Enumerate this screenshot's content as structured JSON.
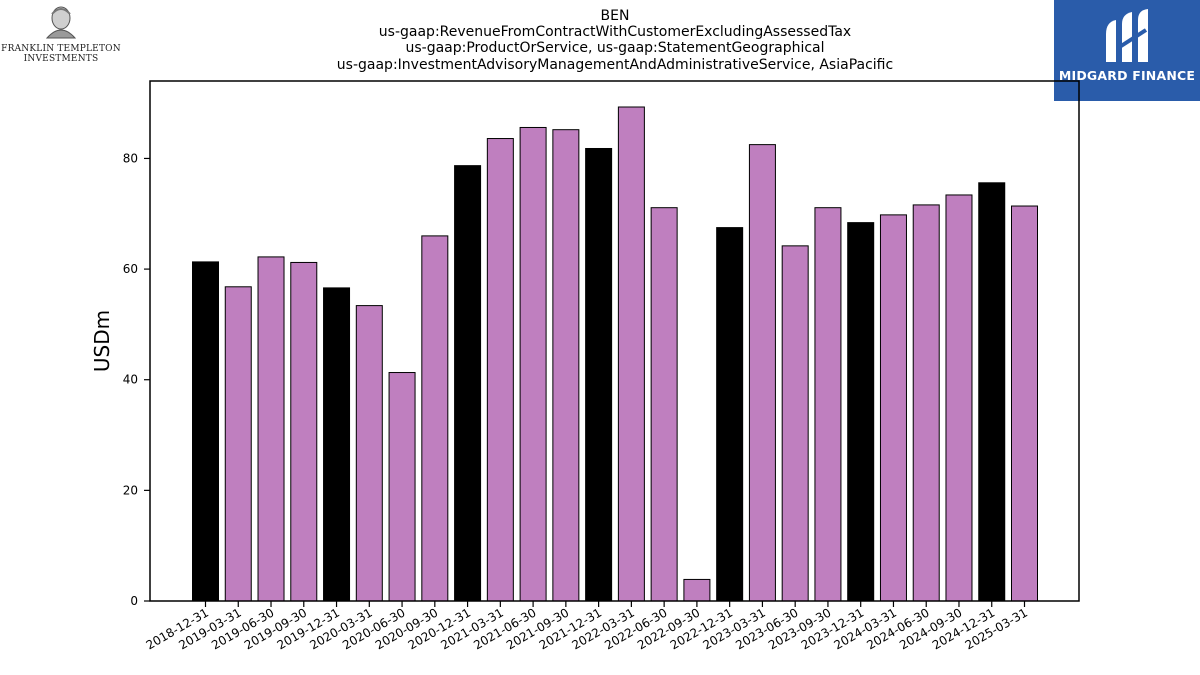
{
  "header": {
    "title_lines": [
      "BEN",
      "us-gaap:RevenueFromContractWithCustomerExcludingAssessedTax",
      "us-gaap:ProductOrService, us-gaap:StatementGeographical",
      "us-gaap:InvestmentAdvisoryManagementAndAdministrativeService, AsiaPacific"
    ]
  },
  "logos": {
    "left": {
      "line1": "FRANKLIN TEMPLETON",
      "line2": "INVESTMENTS"
    },
    "right": {
      "text": "MIDGARD FINANCE",
      "color": "#2a5caa"
    }
  },
  "colors": {
    "quarter_bar": "#bf7fbf",
    "year_end_bar": "#000000",
    "bar_edge": "#000000"
  },
  "chart_data": {
    "type": "bar",
    "title": "BEN\nus-gaap:RevenueFromContractWithCustomerExcludingAssessedTax\nus-gaap:ProductOrService, us-gaap:StatementGeographical\nus-gaap:InvestmentAdvisoryManagementAndAdministrativeService, AsiaPacific",
    "xlabel": "",
    "ylabel": "USDm",
    "ylim": [
      0,
      94
    ],
    "yticks": [
      0,
      20,
      40,
      60,
      80
    ],
    "grid": false,
    "categories": [
      "2018-12-31",
      "2019-03-31",
      "2019-06-30",
      "2019-09-30",
      "2019-12-31",
      "2020-03-31",
      "2020-06-30",
      "2020-09-30",
      "2020-12-31",
      "2021-03-31",
      "2021-06-30",
      "2021-09-30",
      "2021-12-31",
      "2022-03-31",
      "2022-06-30",
      "2022-09-30",
      "2022-12-31",
      "2023-03-31",
      "2023-06-30",
      "2023-09-30",
      "2023-12-31",
      "2024-03-31",
      "2024-06-30",
      "2024-09-30",
      "2024-12-31",
      "2025-03-31"
    ],
    "values": [
      61.3,
      56.8,
      62.2,
      61.2,
      56.6,
      53.4,
      41.3,
      66.0,
      78.7,
      83.6,
      85.6,
      85.2,
      81.8,
      89.3,
      71.1,
      3.9,
      67.5,
      82.5,
      64.2,
      71.1,
      68.4,
      69.8,
      71.6,
      73.4,
      75.6,
      71.4
    ],
    "year_end": [
      true,
      false,
      false,
      false,
      true,
      false,
      false,
      false,
      true,
      false,
      false,
      false,
      true,
      false,
      false,
      false,
      true,
      false,
      false,
      false,
      true,
      false,
      false,
      false,
      true,
      false
    ]
  }
}
